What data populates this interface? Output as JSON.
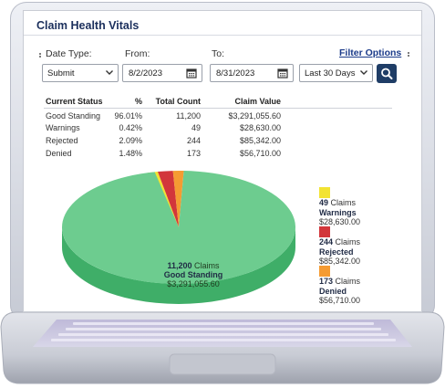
{
  "panel": {
    "title": "Claim Health Vitals"
  },
  "filters": {
    "date_type_label": "Date Type:",
    "date_type_value": "Submit",
    "from_label": "From:",
    "from_value": "8/2/2023",
    "to_label": "To:",
    "to_value": "8/31/2023",
    "range_value": "Last 30 Days",
    "filter_options_label": "Filter Options"
  },
  "table": {
    "headers": [
      "Current Status",
      "%",
      "Total Count",
      "Claim Value"
    ],
    "rows": [
      {
        "status": "Good Standing",
        "pct": "96.01%",
        "count": "11,200",
        "value": "$3,291,055.60"
      },
      {
        "status": "Warnings",
        "pct": "0.42%",
        "count": "49",
        "value": "$28,630.00"
      },
      {
        "status": "Rejected",
        "pct": "2.09%",
        "count": "244",
        "value": "$85,342.00"
      },
      {
        "status": "Denied",
        "pct": "1.48%",
        "count": "173",
        "value": "$56,710.00"
      }
    ]
  },
  "chart_data": {
    "type": "pie",
    "slices": [
      {
        "label": "Good Standing",
        "count": 11200,
        "value": 3291055.6,
        "color": "#6dcc8f"
      },
      {
        "label": "Warnings",
        "count": 49,
        "value": 28630.0,
        "color": "#f2e332"
      },
      {
        "label": "Rejected",
        "count": 244,
        "value": 85342.0,
        "color": "#d2363b"
      },
      {
        "label": "Denied",
        "count": 173,
        "value": 56710.0,
        "color": "#f59b32"
      }
    ]
  },
  "pie_label": {
    "count_num": "11,200",
    "claims_word": "Claims",
    "status": "Good Standing",
    "value": "$3,291,055.60"
  },
  "legend": [
    {
      "count_num": "49",
      "claims_word": "Claims",
      "status": "Warnings",
      "value": "$28,630.00",
      "color": "#f2e332"
    },
    {
      "count_num": "244",
      "claims_word": "Claims",
      "status": "Rejected",
      "value": "$85,342.00",
      "color": "#d2363b"
    },
    {
      "count_num": "173",
      "claims_word": "Claims",
      "status": "Denied",
      "value": "$56,710.00",
      "color": "#f59b32"
    }
  ],
  "colors": {
    "accent": "#1b2f5c",
    "button": "#1f3d66",
    "pie_side": "#3fae68"
  },
  "icons": [
    "calendar-icon",
    "search-icon",
    "chevron-down-icon"
  ]
}
